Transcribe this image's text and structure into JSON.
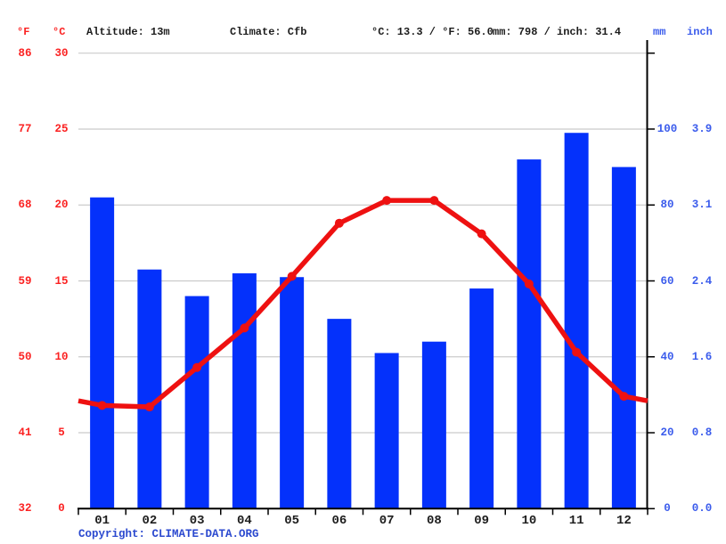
{
  "header": {
    "fahrenheit_unit": "°F",
    "celsius_unit": "°C",
    "altitude": "Altitude: 13m",
    "climate": "Climate: Cfb",
    "avg_temperature": "°C: 13.3 / °F: 56.0",
    "annual_precipitation": "mm: 798 / inch: 31.4",
    "mm_unit": "mm",
    "inch_unit": "inch"
  },
  "footer": {
    "copyright_prefix": "Copyright: ",
    "copyright_link": "CLIMATE-DATA.ORG"
  },
  "colors": {
    "bar": "#0431fb",
    "line": "#ee1111",
    "temp_axis_text": "#fb2222",
    "precip_axis_text": "#3b5cec",
    "copyright_text": "#2b49cf",
    "grid": "#cbcbcb",
    "axis": "#000000",
    "text": "#1c1c1c"
  },
  "chart_data": {
    "type": "bar",
    "subtype": "climograph (bar + line combo)",
    "title": "",
    "categories": [
      "01",
      "02",
      "03",
      "04",
      "05",
      "06",
      "07",
      "08",
      "09",
      "10",
      "11",
      "12"
    ],
    "series": [
      {
        "name": "precipitation_mm",
        "type": "bar",
        "values": [
          82,
          63,
          56,
          62,
          61,
          50,
          41,
          44,
          58,
          92,
          99,
          90
        ]
      },
      {
        "name": "temperature_c",
        "type": "line",
        "values": [
          6.8,
          6.7,
          9.3,
          11.9,
          15.3,
          18.8,
          20.3,
          20.3,
          18.1,
          14.8,
          10.3,
          7.4
        ]
      }
    ],
    "temperature_axis": {
      "side": "left",
      "celsius_ticks": [
        30,
        25,
        20,
        15,
        10,
        5,
        0
      ],
      "fahrenheit_ticks": [
        86,
        77,
        68,
        59,
        50,
        41,
        32
      ],
      "celsius_range": [
        0,
        30
      ]
    },
    "precipitation_axis": {
      "side": "right",
      "mm_ticks": [
        100,
        80,
        60,
        40,
        20,
        0
      ],
      "inch_ticks": [
        "3.9",
        "3.1",
        "2.4",
        "1.6",
        "0.8",
        "0.0"
      ],
      "mm_range": [
        0,
        120
      ]
    },
    "grid": true,
    "legend": "none",
    "annual_mean_temp_c": 13.3,
    "annual_precipitation_mm": 798
  }
}
